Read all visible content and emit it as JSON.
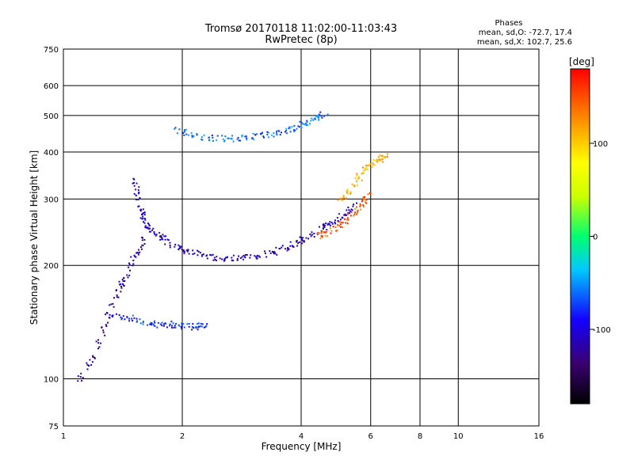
{
  "chart_data": {
    "type": "scatter",
    "title": "Tromsø 20170118 11:02:00-11:03:43",
    "subtitle": "RwPretec (8p)",
    "xlabel": "Frequency [MHz]",
    "ylabel": "Stationary phase Virtual Height [km]",
    "x_scale": "log",
    "y_scale": "log",
    "xlim": [
      1,
      16
    ],
    "ylim": [
      75,
      750
    ],
    "x_ticks": [
      "1",
      "2",
      "4",
      "6",
      "8",
      "10",
      "16"
    ],
    "x_tick_values": [
      1,
      2,
      4,
      6,
      8,
      10,
      16
    ],
    "y_ticks": [
      "75",
      "100",
      "200",
      "300",
      "400",
      "500",
      "600",
      "750"
    ],
    "y_tick_values": [
      75,
      100,
      200,
      300,
      400,
      500,
      600,
      750
    ],
    "grid": true,
    "info": {
      "heading": "Phases",
      "line1": "mean, sd,O: -72.7, 17.4",
      "line2": "mean, sd,X: 102.7, 25.6"
    },
    "colorbar": {
      "label": "[deg]",
      "range": [
        -180,
        180
      ],
      "ticks": [
        "100",
        "0",
        "-100"
      ],
      "tick_values": [
        100,
        0,
        -100
      ]
    },
    "series_traces": [
      {
        "x": [
          1.5,
          1.55,
          1.6,
          1.7,
          1.8,
          2.0,
          2.3,
          2.6,
          3.0,
          3.4,
          3.8,
          4.2,
          4.6,
          5.0,
          5.5
        ],
        "y": [
          350,
          290,
          260,
          245,
          235,
          220,
          212,
          210,
          212,
          218,
          228,
          240,
          255,
          270,
          290
        ],
        "phase": -110
      },
      {
        "x": [
          1.9,
          2.2,
          2.6,
          3.0,
          3.4,
          3.8,
          4.2,
          4.6
        ],
        "y": [
          460,
          440,
          435,
          440,
          448,
          465,
          485,
          510
        ],
        "phase": -60
      },
      {
        "x": [
          4.4,
          4.8,
          5.2,
          5.6,
          5.9
        ],
        "y": [
          240,
          250,
          265,
          285,
          310
        ],
        "phase": 150
      },
      {
        "x": [
          5.0,
          5.4,
          5.8,
          6.2,
          6.6
        ],
        "y": [
          300,
          330,
          360,
          380,
          395
        ],
        "phase": 110
      },
      {
        "x": [
          1.1,
          1.2,
          1.3,
          1.4,
          1.5,
          1.6
        ],
        "y": [
          100,
          120,
          150,
          180,
          210,
          240
        ],
        "phase": -120
      },
      {
        "x": [
          1.3,
          1.5,
          1.7,
          1.9,
          2.1,
          2.3
        ],
        "y": [
          150,
          145,
          140,
          140,
          138,
          140
        ],
        "phase": -80
      }
    ]
  }
}
